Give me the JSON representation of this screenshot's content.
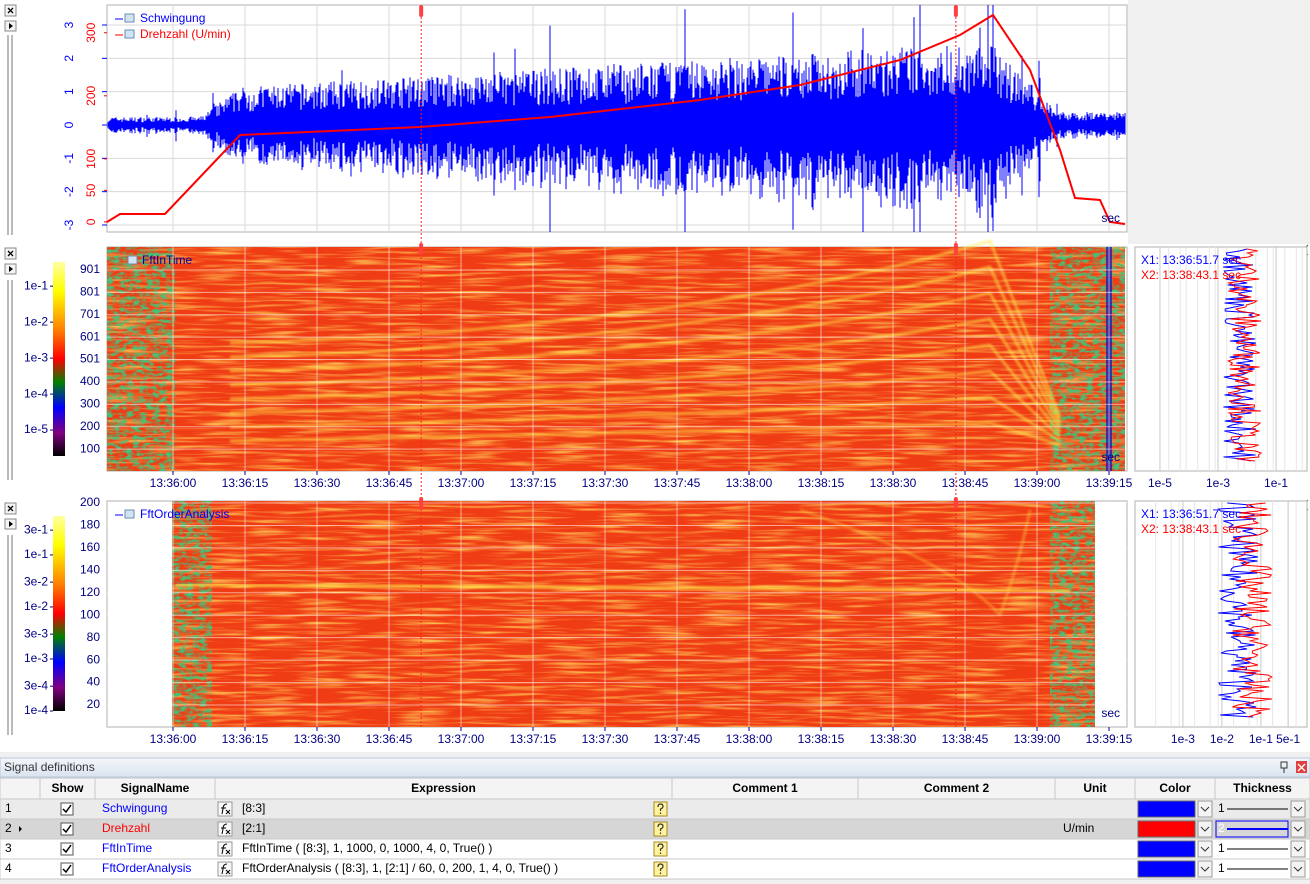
{
  "time_axis": {
    "xlim": [
      48946.25,
      49158.75
    ],
    "xticks": [
      {
        "value": 48960,
        "label": "13:36:00"
      },
      {
        "value": 48975,
        "label": "13:36:15"
      },
      {
        "value": 48990,
        "label": "13:36:30"
      },
      {
        "value": 49005,
        "label": "13:36:45"
      },
      {
        "value": 49020,
        "label": "13:37:00"
      },
      {
        "value": 49035,
        "label": "13:37:15"
      },
      {
        "value": 49050,
        "label": "13:37:30"
      },
      {
        "value": 49065,
        "label": "13:37:45"
      },
      {
        "value": 49080,
        "label": "13:38:00"
      },
      {
        "value": 49095,
        "label": "13:38:15"
      },
      {
        "value": 49110,
        "label": "13:38:30"
      },
      {
        "value": 49125,
        "label": "13:38:45"
      },
      {
        "value": 49140,
        "label": "13:39:00"
      },
      {
        "value": 49155,
        "label": "13:39:15"
      }
    ],
    "unit": "sec"
  },
  "cursors": [
    {
      "value": 49011.7,
      "label": "X1: 13:36:51.7 sec",
      "label_color": "#0000ff"
    },
    {
      "value": 49123.1,
      "label": "X2: 13:38:43.1 sec",
      "label_color": "#ff0000"
    }
  ],
  "panels": [
    {
      "legend": [
        {
          "name": "Schwingung",
          "color": "#0000ff"
        },
        {
          "name": "Drehzahl (U/min)",
          "color": "#ff0000"
        }
      ],
      "ylim": [
        -3.21,
        3.6
      ],
      "yticks": [
        -3,
        -2,
        -1,
        0,
        1,
        2,
        3
      ],
      "y2lim": [
        -16,
        344
      ],
      "y2ticks": [
        0,
        50,
        100,
        200,
        300
      ]
    },
    {
      "legend": [
        {
          "name": "FftInTime",
          "color": "#0000a0"
        }
      ],
      "ylim": [
        2,
        1004
      ],
      "yticks": [
        100,
        200,
        300,
        400,
        501,
        601,
        701,
        801,
        901
      ],
      "clim": [
        1.9e-06,
        0.47
      ],
      "colorbar_ticks": [
        {
          "value": 0.1,
          "label": "1e-1"
        },
        {
          "value": 0.01,
          "label": "1e-2"
        },
        {
          "value": 0.001,
          "label": "1e-3"
        },
        {
          "value": 0.0001,
          "label": "1e-4"
        },
        {
          "value": 1e-05,
          "label": "1e-5"
        }
      ],
      "side": {
        "xlim": [
          1.38e-06,
          1.48
        ],
        "xticks": [
          {
            "value": 1e-05,
            "label": "1e-5"
          },
          {
            "value": 0.001,
            "label": "1e-3"
          },
          {
            "value": 0.1,
            "label": "1e-1"
          }
        ]
      }
    },
    {
      "legend": [
        {
          "name": "FftOrderAnalysis",
          "color": "#0000ff"
        }
      ],
      "ylim": [
        0.4,
        201.8
      ],
      "yticks": [
        20,
        40,
        60,
        80,
        100,
        120,
        140,
        160,
        180,
        200
      ],
      "clim": [
        0.0001,
        0.56
      ],
      "colorbar_ticks": [
        {
          "value": 0.3,
          "label": "3e-1"
        },
        {
          "value": 0.1,
          "label": "1e-1"
        },
        {
          "value": 0.03,
          "label": "3e-2"
        },
        {
          "value": 0.01,
          "label": "1e-2"
        },
        {
          "value": 0.003,
          "label": "3e-3"
        },
        {
          "value": 0.001,
          "label": "1e-3"
        },
        {
          "value": 0.0003,
          "label": "3e-4"
        },
        {
          "value": 0.0001,
          "label": "1e-4"
        }
      ],
      "side": {
        "xlim": [
          5.9e-05,
          1.82
        ],
        "xticks": [
          {
            "value": 0.001,
            "label": "1e-3"
          },
          {
            "value": 0.01,
            "label": "1e-2"
          },
          {
            "value": 0.1,
            "label": "1e-1"
          },
          {
            "value": 0.5,
            "label": "5e-1"
          }
        ]
      }
    }
  ],
  "table": {
    "title": "Signal definitions",
    "columns": [
      "Show",
      "SignalName",
      "Expression",
      "Comment 1",
      "Comment 2",
      "Unit",
      "Color",
      "Thickness"
    ],
    "rows": [
      {
        "index": 1,
        "show": true,
        "name": "Schwingung",
        "name_color": "#0000ff",
        "expression": "[8:3]",
        "color": "#0000ff",
        "thickness": 1
      },
      {
        "index": 2,
        "show": true,
        "name": "Drehzahl",
        "name_color": "#ff0000",
        "expression": "[2:1]",
        "unit": "U/min",
        "color": "#ff0000",
        "thickness": 2
      },
      {
        "index": 3,
        "show": true,
        "name": "FftInTime",
        "name_color": "#0000ff",
        "expression": "FftInTime ( [8:3], 1, 1000, 0, 1000, 4, 0, True() )",
        "color": "#0000ff",
        "thickness": 1
      },
      {
        "index": 4,
        "show": true,
        "name": "FftOrderAnalysis",
        "name_color": "#0000ff",
        "expression": "FftOrderAnalysis ( [8:3], 1, [2:1] / 60, 0, 200, 1, 4, 0, True() )",
        "color": "#0000ff",
        "thickness": 1
      }
    ]
  }
}
